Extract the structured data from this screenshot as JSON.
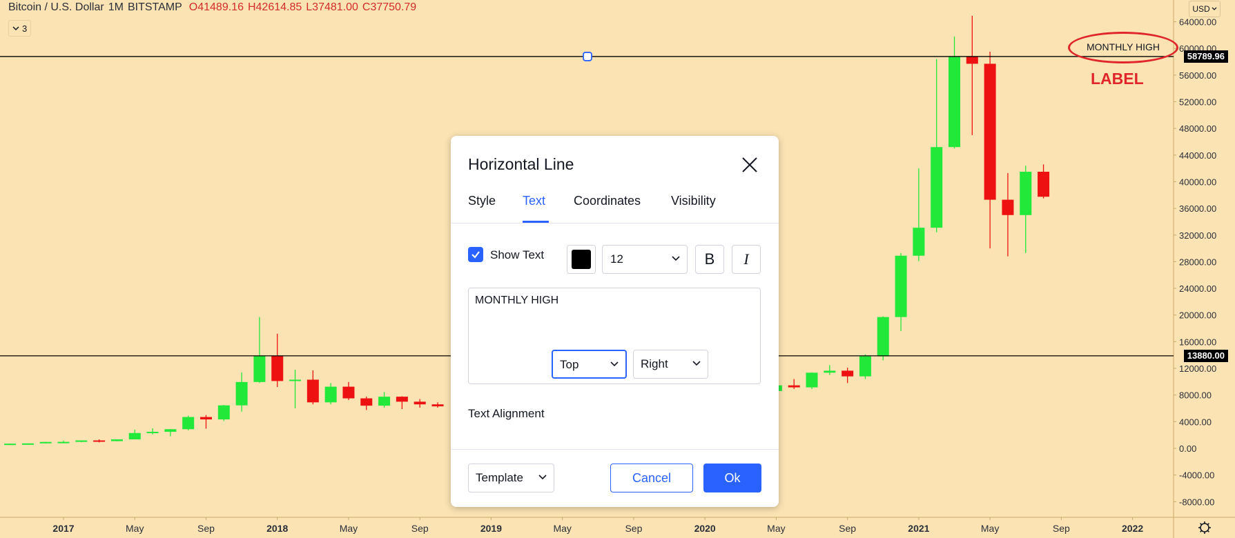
{
  "header": {
    "symbol": "Bitcoin / U.S. Dollar",
    "interval": "1M",
    "exchange": "BITSTAMP",
    "open": "O41489.16",
    "high": "H42614.85",
    "low": "L37481.00",
    "close": "C37750.79",
    "indicator_count": "3",
    "currency": "USD"
  },
  "annotation": {
    "line_text": "MONTHLY HIGH",
    "label": "LABEL"
  },
  "price_tags": {
    "upper": "58789.96",
    "lower": "13880.00"
  },
  "colors": {
    "background": "#fbe3b3",
    "up": "#22e83a",
    "down": "#ee1111",
    "accent": "#2962ff",
    "annotation": "#e0262a"
  },
  "chart_data": {
    "type": "candlestick",
    "x_tick_labels": [
      "2017",
      "May",
      "Sep",
      "2018",
      "May",
      "Sep",
      "2019",
      "May",
      "Sep",
      "2020",
      "May",
      "Sep",
      "2021",
      "May",
      "Sep",
      "2022"
    ],
    "y_tick_labels": [
      "64000.00",
      "60000.00",
      "56000.00",
      "52000.00",
      "48000.00",
      "44000.00",
      "40000.00",
      "36000.00",
      "32000.00",
      "28000.00",
      "24000.00",
      "20000.00",
      "16000.00",
      "12000.00",
      "8000.00",
      "4000.00",
      "0.00",
      "-4000.00",
      "-8000.00"
    ],
    "ylim": [
      -10000,
      67000
    ],
    "horizontal_lines": [
      58789.96,
      13880.0
    ],
    "candles": [
      {
        "d": "2016-10",
        "o": 610,
        "h": 710,
        "l": 600,
        "c": 700
      },
      {
        "d": "2016-11",
        "o": 700,
        "h": 750,
        "l": 690,
        "c": 740
      },
      {
        "d": "2016-12",
        "o": 745,
        "h": 970,
        "l": 740,
        "c": 960
      },
      {
        "d": "2017-01",
        "o": 965,
        "h": 1150,
        "l": 750,
        "c": 970
      },
      {
        "d": "2017-02",
        "o": 970,
        "h": 1200,
        "l": 920,
        "c": 1190
      },
      {
        "d": "2017-03",
        "o": 1190,
        "h": 1350,
        "l": 890,
        "c": 1080
      },
      {
        "d": "2017-04",
        "o": 1080,
        "h": 1350,
        "l": 1060,
        "c": 1345
      },
      {
        "d": "2017-05",
        "o": 1345,
        "h": 2800,
        "l": 1340,
        "c": 2300
      },
      {
        "d": "2017-06",
        "o": 2300,
        "h": 3000,
        "l": 2100,
        "c": 2480
      },
      {
        "d": "2017-07",
        "o": 2480,
        "h": 2900,
        "l": 1800,
        "c": 2870
      },
      {
        "d": "2017-08",
        "o": 2870,
        "h": 4900,
        "l": 2700,
        "c": 4700
      },
      {
        "d": "2017-09",
        "o": 4700,
        "h": 5000,
        "l": 2950,
        "c": 4340
      },
      {
        "d": "2017-10",
        "o": 4340,
        "h": 6500,
        "l": 4100,
        "c": 6450
      },
      {
        "d": "2017-11",
        "o": 6450,
        "h": 11400,
        "l": 5500,
        "c": 9950
      },
      {
        "d": "2017-12",
        "o": 9950,
        "h": 19700,
        "l": 9800,
        "c": 13880
      },
      {
        "d": "2018-01",
        "o": 13880,
        "h": 17200,
        "l": 9200,
        "c": 10100
      },
      {
        "d": "2018-02",
        "o": 10100,
        "h": 11800,
        "l": 6000,
        "c": 10300
      },
      {
        "d": "2018-03",
        "o": 10300,
        "h": 11700,
        "l": 6600,
        "c": 6900
      },
      {
        "d": "2018-04",
        "o": 6900,
        "h": 9800,
        "l": 6600,
        "c": 9250
      },
      {
        "d": "2018-05",
        "o": 9250,
        "h": 9950,
        "l": 7250,
        "c": 7500
      },
      {
        "d": "2018-06",
        "o": 7500,
        "h": 7750,
        "l": 5750,
        "c": 6400
      },
      {
        "d": "2018-07",
        "o": 6400,
        "h": 8450,
        "l": 6100,
        "c": 7750
      },
      {
        "d": "2018-08",
        "o": 7750,
        "h": 7800,
        "l": 5900,
        "c": 7000
      },
      {
        "d": "2018-09",
        "o": 7000,
        "h": 7400,
        "l": 6100,
        "c": 6600
      },
      {
        "d": "2018-10",
        "o": 6600,
        "h": 6900,
        "l": 6100,
        "c": 6300
      },
      {
        "d": "2020-05",
        "o": 8600,
        "h": 9900,
        "l": 8100,
        "c": 9450
      },
      {
        "d": "2020-06",
        "o": 9450,
        "h": 10400,
        "l": 8900,
        "c": 9150
      },
      {
        "d": "2020-07",
        "o": 9150,
        "h": 11400,
        "l": 8900,
        "c": 11350
      },
      {
        "d": "2020-08",
        "o": 11350,
        "h": 12500,
        "l": 11000,
        "c": 11650
      },
      {
        "d": "2020-09",
        "o": 11650,
        "h": 12100,
        "l": 9800,
        "c": 10800
      },
      {
        "d": "2020-10",
        "o": 10800,
        "h": 14100,
        "l": 10400,
        "c": 13800
      },
      {
        "d": "2020-11",
        "o": 13800,
        "h": 19800,
        "l": 13200,
        "c": 19700
      },
      {
        "d": "2020-12",
        "o": 19700,
        "h": 29300,
        "l": 17600,
        "c": 28900
      },
      {
        "d": "2021-01",
        "o": 28900,
        "h": 42000,
        "l": 28100,
        "c": 33100
      },
      {
        "d": "2021-02",
        "o": 33100,
        "h": 58400,
        "l": 32400,
        "c": 45200
      },
      {
        "d": "2021-03",
        "o": 45200,
        "h": 61800,
        "l": 45000,
        "c": 58800
      },
      {
        "d": "2021-04",
        "o": 58800,
        "h": 64900,
        "l": 47000,
        "c": 57700
      },
      {
        "d": "2021-05",
        "o": 57700,
        "h": 59500,
        "l": 30000,
        "c": 37300
      },
      {
        "d": "2021-06",
        "o": 37300,
        "h": 41300,
        "l": 28800,
        "c": 35000
      },
      {
        "d": "2021-07",
        "o": 35000,
        "h": 42400,
        "l": 29300,
        "c": 41500
      },
      {
        "d": "2021-08",
        "o": 41500,
        "h": 42600,
        "l": 37500,
        "c": 37750
      }
    ]
  },
  "dialog": {
    "title": "Horizontal Line",
    "tabs": [
      "Style",
      "Text",
      "Coordinates",
      "Visibility"
    ],
    "active_tab": "Text",
    "show_text_label": "Show Text",
    "show_text_checked": true,
    "text_color": "#000000",
    "font_size": "12",
    "bold_label": "B",
    "italic_label": "I",
    "text_value": "MONTHLY HIGH",
    "alignment_label": "Text Alignment",
    "vertical_alignment": "Top",
    "horizontal_alignment": "Right",
    "template_label": "Template",
    "cancel_label": "Cancel",
    "ok_label": "Ok"
  }
}
